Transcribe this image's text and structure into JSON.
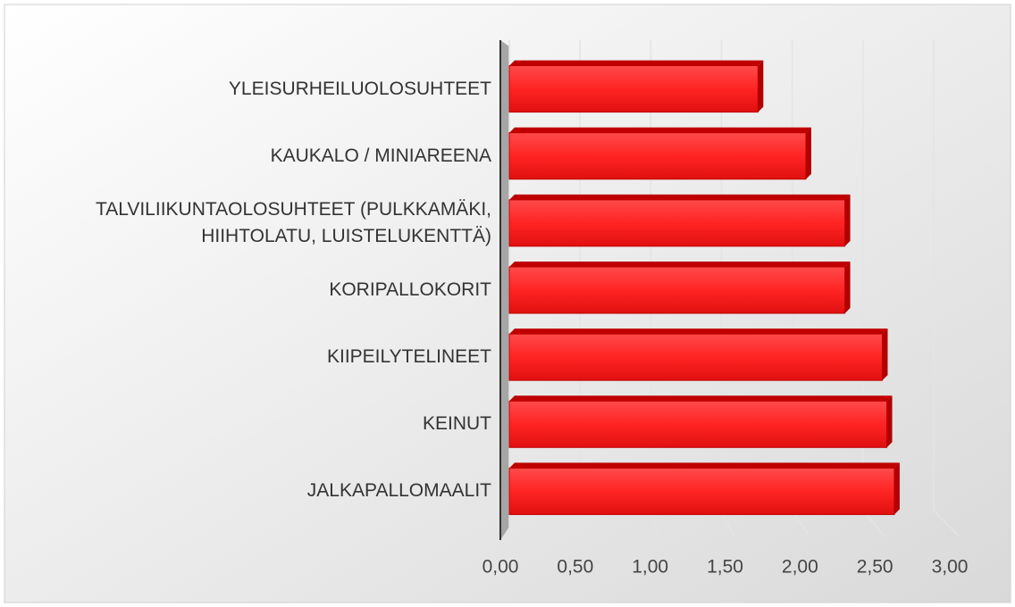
{
  "chart_data": {
    "type": "bar",
    "orientation": "horizontal",
    "categories": [
      "YLEISURHEILUOLOSUHTEET",
      "KAUKALO / MINIAREENA",
      "TALVILIIKUNTAOLOSUHTEET (PULKKAMÄKI, HIIHTOLATU, LUISTELUKENTTÄ)",
      "KORIPALLOKORIT",
      "KIIPEILYTELINEET",
      "KEINUT",
      "JALKAPALLOMAALIT"
    ],
    "values": [
      1.66,
      1.98,
      2.24,
      2.24,
      2.49,
      2.52,
      2.57
    ],
    "color": "#ff2a2a",
    "xlim": [
      0,
      3
    ],
    "xticks": [
      {
        "value": 0,
        "label": "0,00"
      },
      {
        "value": 0.5,
        "label": "0,50"
      },
      {
        "value": 1,
        "label": "1,00"
      },
      {
        "value": 1.5,
        "label": "1,50"
      },
      {
        "value": 2,
        "label": "2,00"
      },
      {
        "value": 2.5,
        "label": "2,50"
      },
      {
        "value": 3,
        "label": "3,00"
      }
    ],
    "grid": true
  }
}
